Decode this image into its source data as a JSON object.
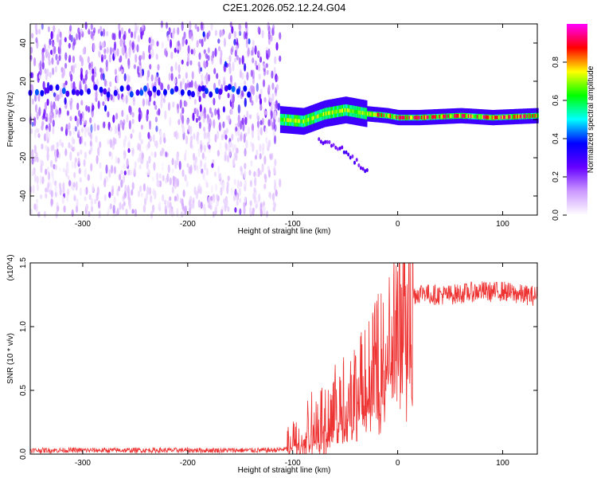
{
  "title": "C2E1.2026.052.12.24.G04",
  "chart_data": [
    {
      "type": "heatmap",
      "xlabel": "Height of straight line (km)",
      "ylabel": "Frequency (Hz)",
      "xlim": [
        -350,
        133
      ],
      "ylim": [
        -50,
        50
      ],
      "x_ticks": [
        -300,
        -200,
        -100,
        0,
        100
      ],
      "y_ticks": [
        -40,
        -20,
        0,
        20,
        40
      ],
      "colorbar": {
        "label": "Normalized spectral amplitude",
        "range": [
          0,
          1
        ],
        "ticks": [
          0.0,
          0.2,
          0.4,
          0.6,
          0.8
        ],
        "tick_labels": [
          "0.0",
          "0.2",
          "0.4",
          "0.6",
          "0.8"
        ],
        "colors": [
          "#ffffff",
          "#cc99ff",
          "#6600ff",
          "#0000ff",
          "#00ffff",
          "#00ff00",
          "#ffff00",
          "#ff0000",
          "#ff00ff"
        ]
      },
      "features": [
        {
          "region": "scattered noise",
          "x_range": [
            -350,
            -112
          ],
          "y_range": [
            -50,
            50
          ],
          "level": 0.15
        },
        {
          "region": "persistent tone",
          "x_range": [
            -350,
            -140
          ],
          "y": 15,
          "level": 0.35
        },
        {
          "region": "main trace",
          "x": [
            -112,
            -90,
            -70,
            -50,
            -30,
            -10,
            0,
            20,
            60,
            90,
            133
          ],
          "y": [
            0,
            -1,
            3,
            5,
            3,
            2,
            1,
            1,
            2,
            1,
            2
          ],
          "level": 0.9
        },
        {
          "region": "falling branch",
          "x": [
            -75,
            -55,
            -40,
            -28
          ],
          "y": [
            -10,
            -15,
            -22,
            -28
          ],
          "level": 0.2
        }
      ]
    },
    {
      "type": "line",
      "xlabel": "Height of straight line (km)",
      "ylabel": "SNR (10 * v/v)",
      "y_multiplier": "(x10^4)",
      "xlim": [
        -350,
        133
      ],
      "ylim": [
        0,
        1.5
      ],
      "x_ticks": [
        -300,
        -200,
        -100,
        0,
        100
      ],
      "y_ticks": [
        0.0,
        0.5,
        1.0,
        1.5
      ],
      "y_tick_labels": [
        "0.0",
        "0.5",
        "1.0",
        "1.5"
      ],
      "color": "#ee3333",
      "x": [
        -350,
        -300,
        -250,
        -200,
        -150,
        -120,
        -105,
        -95,
        -85,
        -75,
        -65,
        -55,
        -45,
        -35,
        -25,
        -15,
        -5,
        5,
        15,
        20,
        25,
        30,
        40,
        50,
        60,
        70,
        80,
        90,
        100,
        110,
        120,
        133
      ],
      "y": [
        0.03,
        0.03,
        0.03,
        0.03,
        0.03,
        0.03,
        0.04,
        0.12,
        0.2,
        0.25,
        0.35,
        0.4,
        0.45,
        0.55,
        0.65,
        0.8,
        1.0,
        1.15,
        1.25,
        1.26,
        1.28,
        1.25,
        1.25,
        1.25,
        1.26,
        1.27,
        1.28,
        1.27,
        1.28,
        1.26,
        1.25,
        1.24
      ]
    }
  ]
}
